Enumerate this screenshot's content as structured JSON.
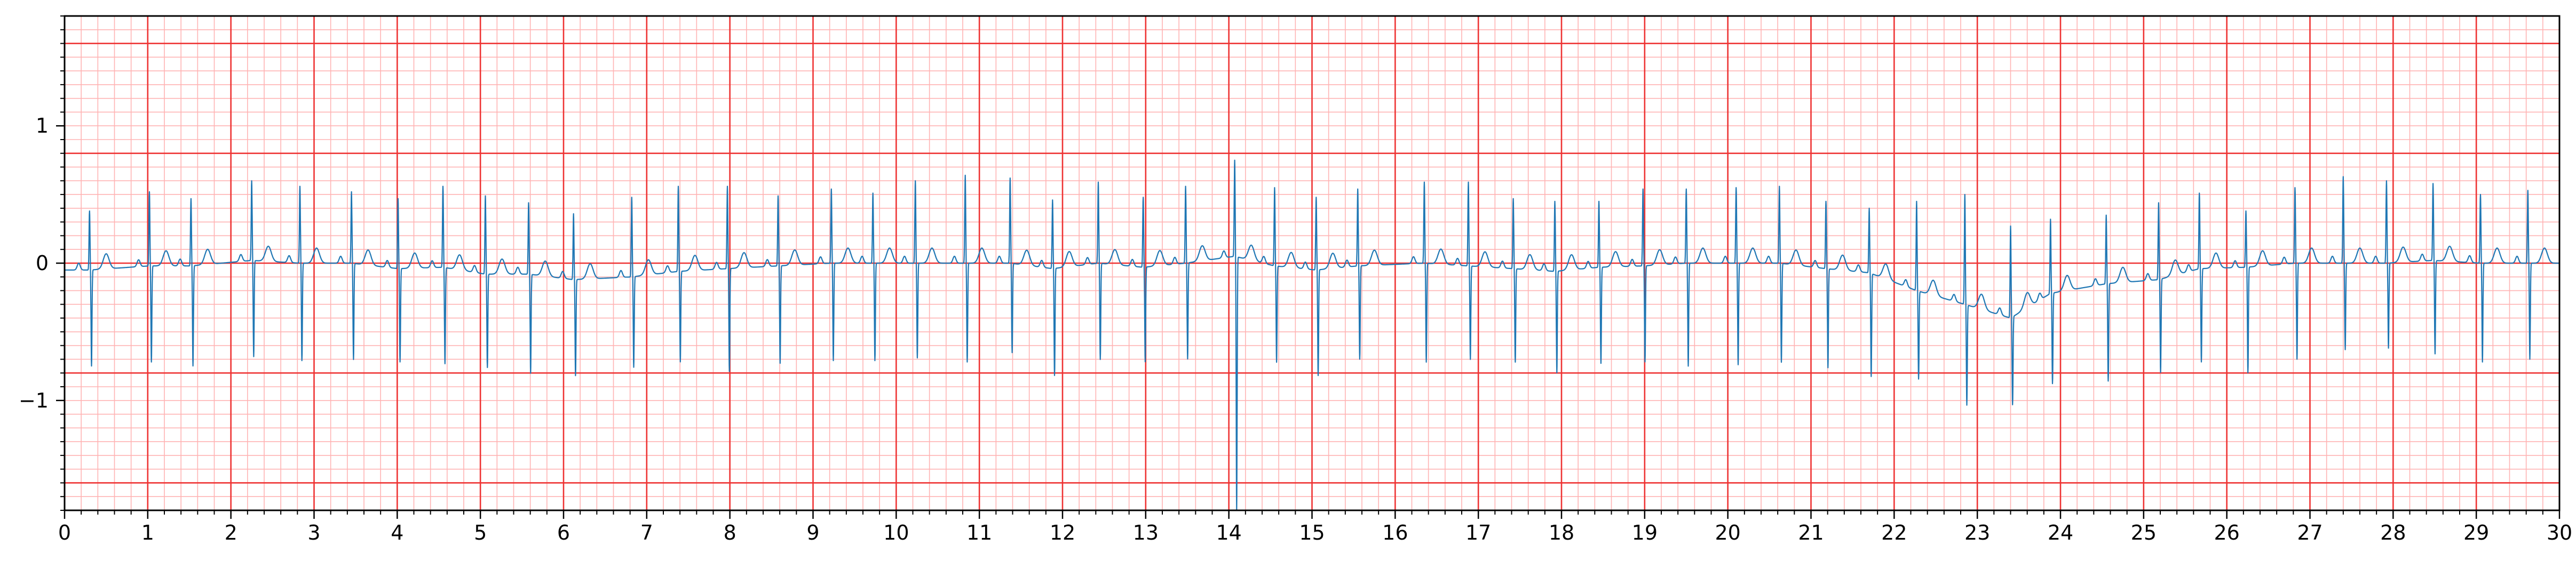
{
  "chart_data": {
    "type": "line",
    "title": "",
    "xlabel": "",
    "ylabel": "",
    "xlim": [
      0,
      30
    ],
    "ylim": [
      -1.8,
      1.8
    ],
    "x_ticks": [
      "0",
      "1",
      "2",
      "3",
      "4",
      "5",
      "6",
      "7",
      "8",
      "9",
      "10",
      "11",
      "12",
      "13",
      "14",
      "15",
      "16",
      "17",
      "18",
      "19",
      "20",
      "21",
      "22",
      "23",
      "24",
      "25",
      "26",
      "27",
      "28",
      "29",
      "30"
    ],
    "y_ticks": [
      {
        "value": 1,
        "label": "1"
      },
      {
        "value": 0,
        "label": "0"
      },
      {
        "value": -1,
        "label": "−1"
      }
    ],
    "grid": {
      "major_x": 1,
      "major_y": 0.8,
      "minor_x": 0.2,
      "minor_y": 0.1
    },
    "colors": {
      "trace": "#1f77b4",
      "major_grid": "#ee3333",
      "minor_grid": "#ffb3b3",
      "axes": "#000000"
    },
    "series": [
      {
        "values": [
          {
            "t": 0.3,
            "r": 0.38,
            "s": -0.75,
            "b": -0.05
          },
          {
            "t": 1.02,
            "r": 0.52,
            "s": -0.72,
            "b": -0.02
          },
          {
            "t": 1.52,
            "r": 0.47,
            "s": -0.75,
            "b": -0.02
          },
          {
            "t": 2.25,
            "r": 0.6,
            "s": -0.68,
            "b": 0.02
          },
          {
            "t": 2.83,
            "r": 0.56,
            "s": -0.71,
            "b": 0.0
          },
          {
            "t": 3.45,
            "r": 0.52,
            "s": -0.7,
            "b": 0.0
          },
          {
            "t": 4.01,
            "r": 0.47,
            "s": -0.72,
            "b": -0.04
          },
          {
            "t": 4.55,
            "r": 0.56,
            "s": -0.73,
            "b": -0.03
          },
          {
            "t": 5.06,
            "r": 0.49,
            "s": -0.76,
            "b": -0.08
          },
          {
            "t": 5.58,
            "r": 0.44,
            "s": -0.8,
            "b": -0.08
          },
          {
            "t": 6.12,
            "r": 0.36,
            "s": -0.82,
            "b": -0.12
          },
          {
            "t": 6.82,
            "r": 0.48,
            "s": -0.76,
            "b": -0.1
          },
          {
            "t": 7.38,
            "r": 0.56,
            "s": -0.72,
            "b": -0.06
          },
          {
            "t": 7.97,
            "r": 0.56,
            "s": -0.79,
            "b": -0.04
          },
          {
            "t": 8.58,
            "r": 0.49,
            "s": -0.73,
            "b": -0.02
          },
          {
            "t": 9.22,
            "r": 0.54,
            "s": -0.71,
            "b": 0.0
          },
          {
            "t": 9.72,
            "r": 0.51,
            "s": -0.71,
            "b": 0.0
          },
          {
            "t": 10.23,
            "r": 0.6,
            "s": -0.69,
            "b": 0.0
          },
          {
            "t": 10.83,
            "r": 0.64,
            "s": -0.72,
            "b": 0.0
          },
          {
            "t": 11.37,
            "r": 0.62,
            "s": -0.65,
            "b": 0.0
          },
          {
            "t": 11.88,
            "r": 0.46,
            "s": -0.82,
            "b": -0.04
          },
          {
            "t": 12.43,
            "r": 0.59,
            "s": -0.7,
            "b": 0.0
          },
          {
            "t": 12.97,
            "r": 0.48,
            "s": -0.72,
            "b": -0.03
          },
          {
            "t": 13.48,
            "r": 0.56,
            "s": -0.7,
            "b": 0.0
          },
          {
            "t": 14.07,
            "r": 0.75,
            "s": -1.8,
            "b": 0.05
          },
          {
            "t": 14.55,
            "r": 0.55,
            "s": -0.72,
            "b": -0.02
          },
          {
            "t": 15.05,
            "r": 0.48,
            "s": -0.82,
            "b": -0.05
          },
          {
            "t": 15.55,
            "r": 0.54,
            "s": -0.7,
            "b": -0.02
          },
          {
            "t": 16.35,
            "r": 0.59,
            "s": -0.72,
            "b": 0.0
          },
          {
            "t": 16.88,
            "r": 0.59,
            "s": -0.7,
            "b": -0.02
          },
          {
            "t": 17.42,
            "r": 0.47,
            "s": -0.72,
            "b": -0.04
          },
          {
            "t": 17.92,
            "r": 0.45,
            "s": -0.8,
            "b": -0.06
          },
          {
            "t": 18.45,
            "r": 0.45,
            "s": -0.73,
            "b": -0.03
          },
          {
            "t": 18.98,
            "r": 0.54,
            "s": -0.72,
            "b": -0.02
          },
          {
            "t": 19.5,
            "r": 0.54,
            "s": -0.75,
            "b": 0.0
          },
          {
            "t": 20.1,
            "r": 0.55,
            "s": -0.74,
            "b": 0.0
          },
          {
            "t": 20.62,
            "r": 0.56,
            "s": -0.72,
            "b": 0.0
          },
          {
            "t": 21.18,
            "r": 0.45,
            "s": -0.76,
            "b": -0.04
          },
          {
            "t": 21.7,
            "r": 0.4,
            "s": -0.82,
            "b": -0.07
          },
          {
            "t": 22.27,
            "r": 0.45,
            "s": -0.84,
            "b": -0.2
          },
          {
            "t": 22.85,
            "r": 0.5,
            "s": -1.03,
            "b": -0.3
          },
          {
            "t": 23.4,
            "r": 0.27,
            "s": -1.04,
            "b": -0.4
          },
          {
            "t": 23.88,
            "r": 0.32,
            "s": -0.88,
            "b": -0.22
          },
          {
            "t": 24.55,
            "r": 0.35,
            "s": -0.86,
            "b": -0.15
          },
          {
            "t": 25.18,
            "r": 0.44,
            "s": -0.8,
            "b": -0.12
          },
          {
            "t": 25.67,
            "r": 0.51,
            "s": -0.72,
            "b": -0.04
          },
          {
            "t": 26.23,
            "r": 0.38,
            "s": -0.8,
            "b": -0.03
          },
          {
            "t": 26.82,
            "r": 0.55,
            "s": -0.7,
            "b": 0.0
          },
          {
            "t": 27.4,
            "r": 0.63,
            "s": -0.63,
            "b": 0.0
          },
          {
            "t": 27.92,
            "r": 0.6,
            "s": -0.62,
            "b": 0.0
          },
          {
            "t": 28.48,
            "r": 0.58,
            "s": -0.66,
            "b": 0.02
          },
          {
            "t": 29.05,
            "r": 0.5,
            "s": -0.72,
            "b": 0.0
          },
          {
            "t": 29.62,
            "r": 0.53,
            "s": -0.7,
            "b": 0.0
          }
        ]
      }
    ]
  }
}
